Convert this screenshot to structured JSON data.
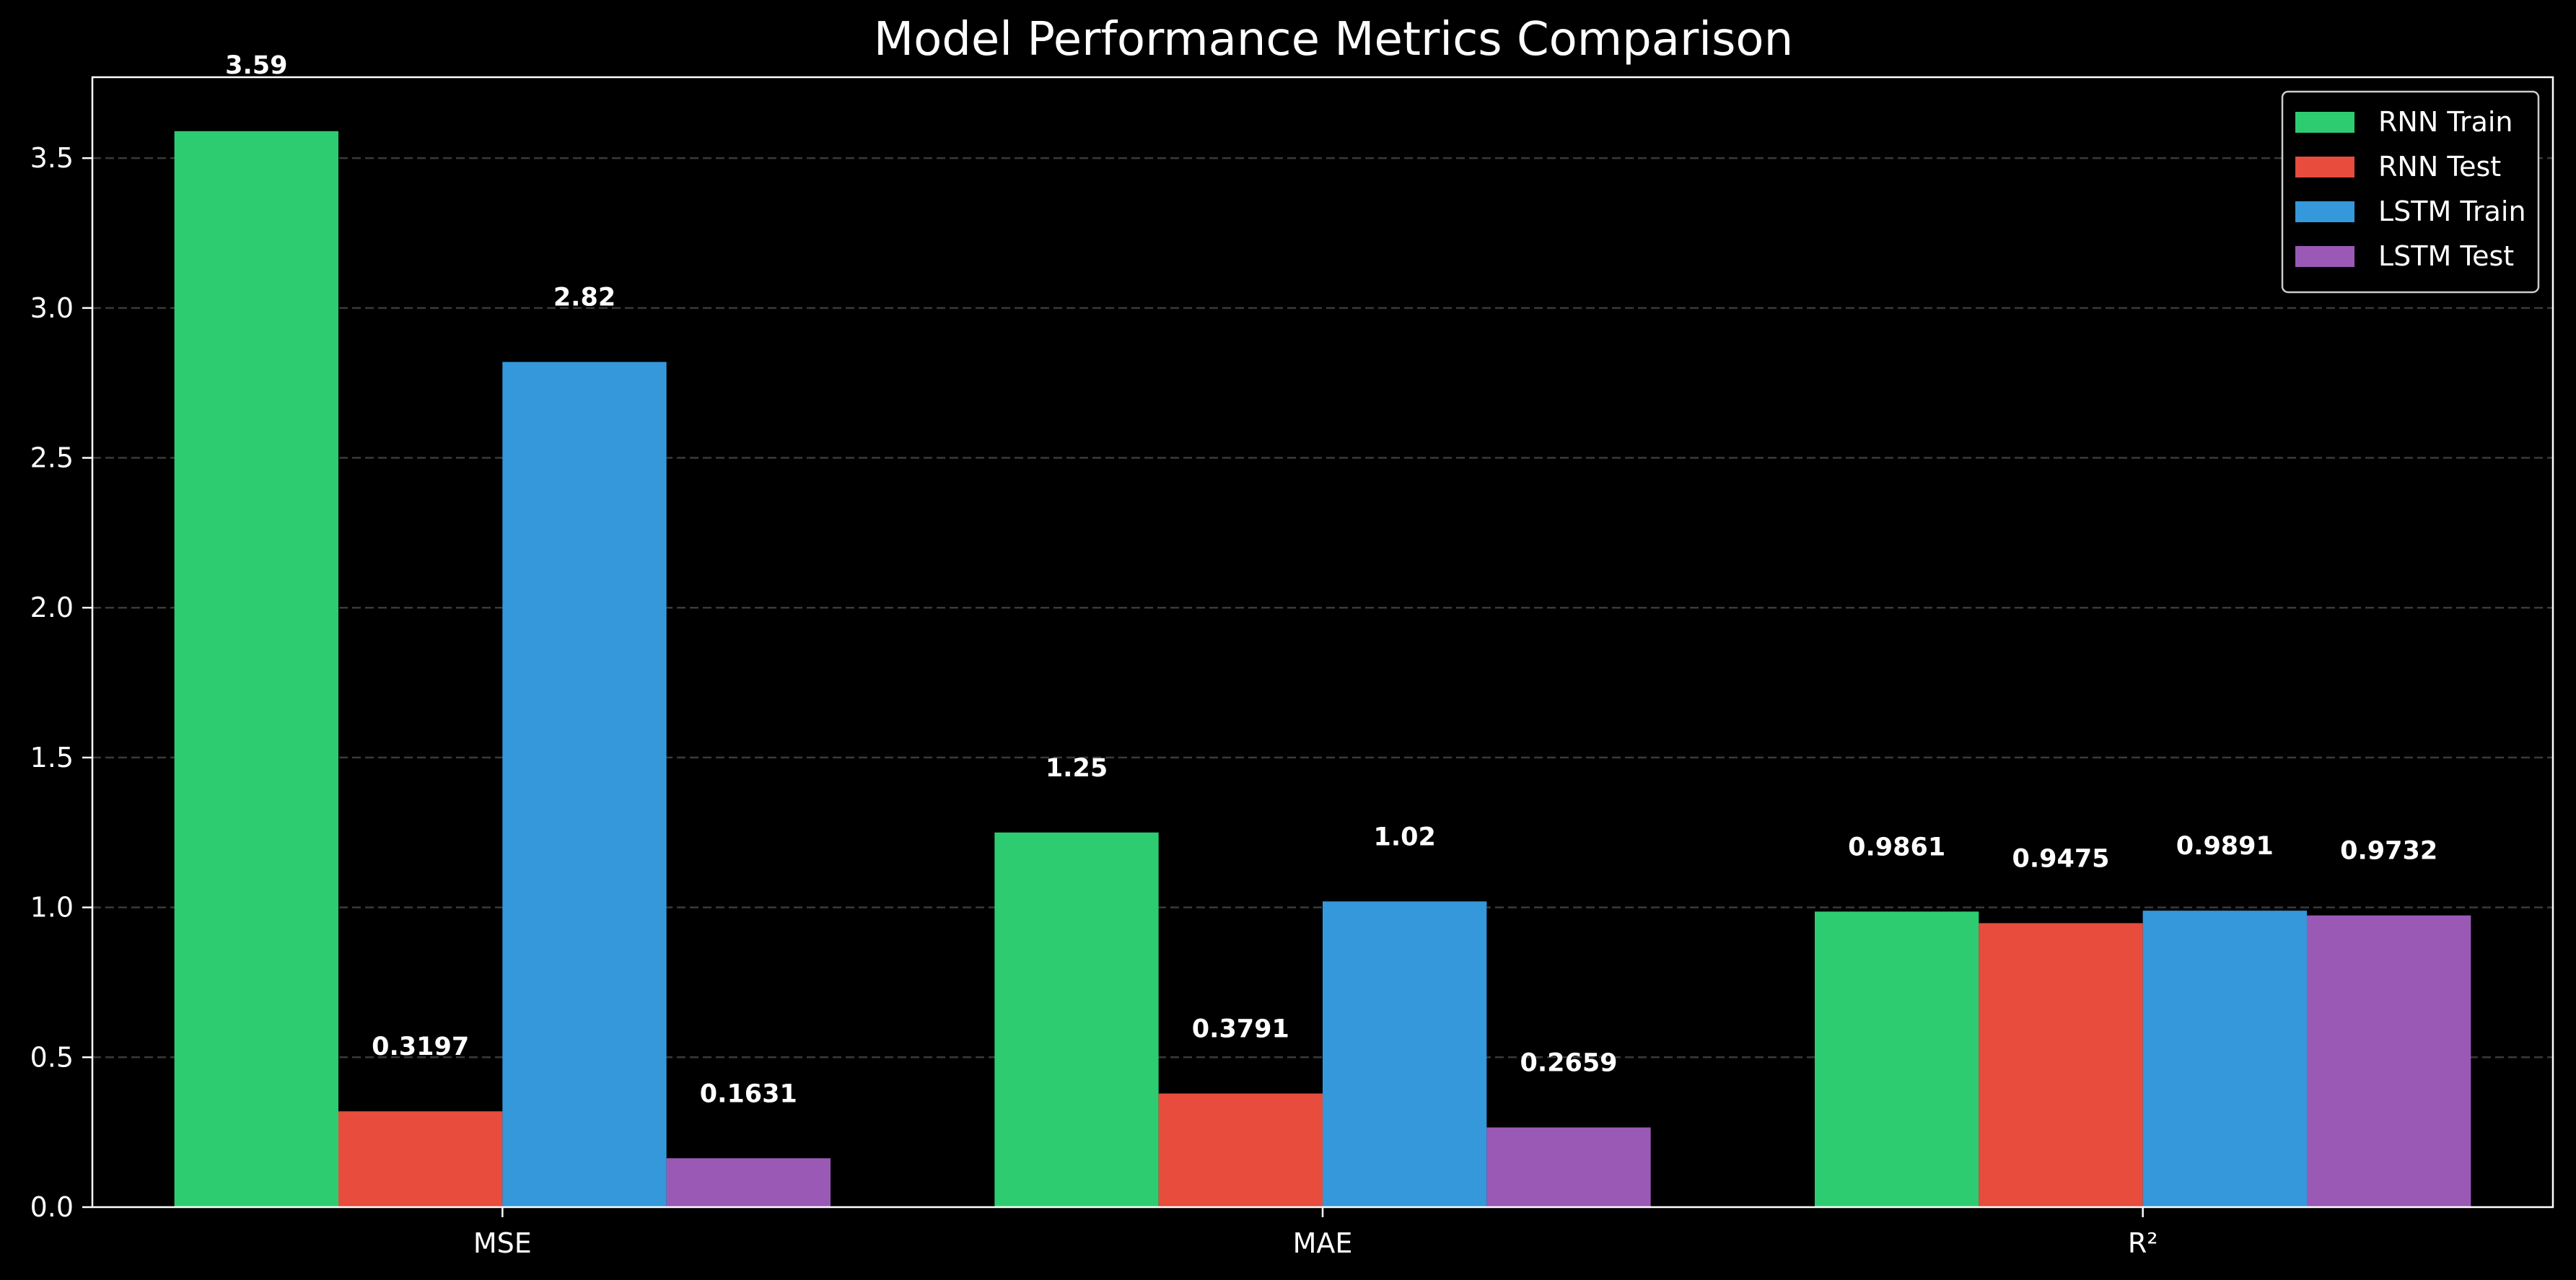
{
  "chart_data": {
    "type": "bar",
    "title": "Model Performance Metrics Comparison",
    "xlabel": "",
    "ylabel": "",
    "categories": [
      "MSE",
      "MAE",
      "R²"
    ],
    "series": [
      {
        "name": "RNN Train",
        "color": "#2ecc71",
        "values": [
          3.59,
          1.25,
          0.9861
        ],
        "labels": [
          "3.59",
          "1.25",
          "0.9861"
        ]
      },
      {
        "name": "RNN Test",
        "color": "#e74c3c",
        "values": [
          0.3197,
          0.3791,
          0.9475
        ],
        "labels": [
          "0.3197",
          "0.3791",
          "0.9475"
        ]
      },
      {
        "name": "LSTM Train",
        "color": "#3498db",
        "values": [
          2.82,
          1.02,
          0.9891
        ],
        "labels": [
          "2.82",
          "1.02",
          "0.9891"
        ]
      },
      {
        "name": "LSTM Test",
        "color": "#9b59b6",
        "values": [
          0.1631,
          0.2659,
          0.9732
        ],
        "labels": [
          "0.1631",
          "0.2659",
          "0.9732"
        ]
      }
    ],
    "ylim": [
      0,
      3.77
    ],
    "yticks": [
      "0.0",
      "0.5",
      "1.0",
      "1.5",
      "2.0",
      "2.5",
      "3.0",
      "3.5"
    ],
    "grid": "y-dashed",
    "legend_position": "top-right",
    "background": "#000000",
    "text_color": "#ffffff"
  }
}
